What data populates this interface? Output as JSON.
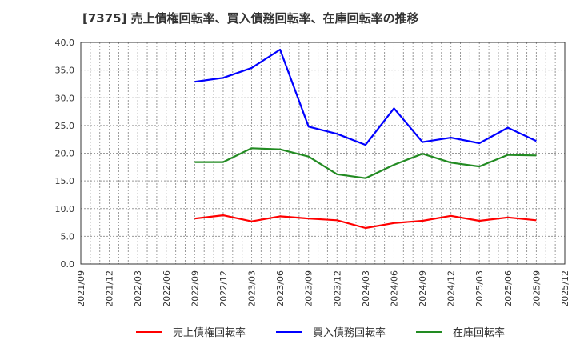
{
  "title": "[7375]  売上債権回転率、買入債務回転率、在庫回転率の推移",
  "chart_data": {
    "type": "line",
    "title": "[7375]  売上債権回転率、買入債務回転率、在庫回転率の推移",
    "xlabel": "",
    "ylabel": "",
    "ylim": [
      0,
      40
    ],
    "yticks": [
      "0.0",
      "5.0",
      "10.0",
      "15.0",
      "20.0",
      "25.0",
      "30.0",
      "35.0",
      "40.0"
    ],
    "xticks": [
      "2021/09",
      "2021/12",
      "2022/03",
      "2022/06",
      "2022/09",
      "2022/12",
      "2023/03",
      "2023/06",
      "2023/09",
      "2023/12",
      "2024/03",
      "2024/06",
      "2024/09",
      "2024/12",
      "2025/03",
      "2025/06",
      "2025/09",
      "2025/12"
    ],
    "grid": true,
    "legend_position": "bottom",
    "x": [
      "2022/09",
      "2022/12",
      "2023/03",
      "2023/06",
      "2023/09",
      "2023/12",
      "2024/03",
      "2024/06",
      "2024/09",
      "2024/12",
      "2025/03",
      "2025/06",
      "2025/09"
    ],
    "series": [
      {
        "name": "売上債権回転率",
        "color": "#ff0000",
        "values": [
          8.2,
          8.8,
          7.7,
          8.6,
          8.2,
          7.9,
          6.5,
          7.4,
          7.8,
          8.7,
          7.8,
          8.4,
          7.9
        ]
      },
      {
        "name": "買入債務回転率",
        "color": "#0000ff",
        "values": [
          32.9,
          33.6,
          35.4,
          38.7,
          24.8,
          23.5,
          21.5,
          28.1,
          22.0,
          22.8,
          21.8,
          24.6,
          22.2
        ]
      },
      {
        "name": "在庫回転率",
        "color": "#228b22",
        "values": [
          18.4,
          18.4,
          20.9,
          20.7,
          19.4,
          16.2,
          15.5,
          17.9,
          19.9,
          18.3,
          17.6,
          19.7,
          19.6
        ]
      }
    ]
  },
  "legend": {
    "items": [
      {
        "label": "売上債権回転率",
        "color": "#ff0000"
      },
      {
        "label": "買入債務回転率",
        "color": "#0000ff"
      },
      {
        "label": "在庫回転率",
        "color": "#228b22"
      }
    ]
  }
}
